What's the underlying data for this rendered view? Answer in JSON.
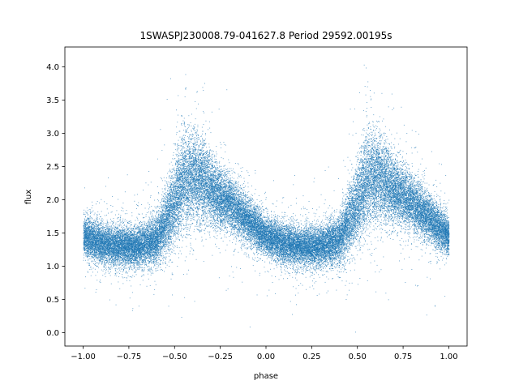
{
  "chart_data": {
    "type": "scatter",
    "title": "1SWASPJ230008.79-041627.8 Period 29592.00195s",
    "xlabel": "phase",
    "ylabel": "flux",
    "xlim": [
      -1.1,
      1.1
    ],
    "ylim": [
      -0.2,
      4.3
    ],
    "x_ticks": [
      -1.0,
      -0.75,
      -0.5,
      -0.25,
      0.0,
      0.25,
      0.5,
      0.75,
      1.0
    ],
    "x_tick_labels": [
      "−1.00",
      "−0.75",
      "−0.50",
      "−0.25",
      "0.00",
      "0.25",
      "0.50",
      "0.75",
      "1.00"
    ],
    "y_ticks": [
      0.0,
      0.5,
      1.0,
      1.5,
      2.0,
      2.5,
      3.0,
      3.5,
      4.0
    ],
    "y_tick_labels": [
      "0.0",
      "0.5",
      "1.0",
      "1.5",
      "2.0",
      "2.5",
      "3.0",
      "3.5",
      "4.0"
    ],
    "grid": false,
    "marker_color": "#1f77b4",
    "x_range": [
      -1.0,
      1.0
    ],
    "approx_point_count": 40000,
    "folded_curve": {
      "description": "phase-folded light curve repeated over two cycles",
      "phase": [
        -1.0,
        -0.9,
        -0.8,
        -0.7,
        -0.6,
        -0.5,
        -0.45,
        -0.4,
        -0.35,
        -0.3,
        -0.2,
        -0.1,
        0.0,
        0.1,
        0.2,
        0.3,
        0.4,
        0.5,
        0.55,
        0.6,
        0.65,
        0.7,
        0.8,
        0.9,
        1.0
      ],
      "median_flux": [
        1.45,
        1.35,
        1.3,
        1.3,
        1.4,
        1.95,
        2.3,
        2.35,
        2.3,
        2.15,
        1.95,
        1.7,
        1.45,
        1.35,
        1.3,
        1.3,
        1.4,
        1.95,
        2.3,
        2.35,
        2.3,
        2.15,
        1.95,
        1.7,
        1.45
      ],
      "spread_sigma": [
        0.15,
        0.15,
        0.15,
        0.15,
        0.18,
        0.3,
        0.35,
        0.35,
        0.3,
        0.25,
        0.2,
        0.17,
        0.15,
        0.15,
        0.15,
        0.15,
        0.18,
        0.3,
        0.35,
        0.35,
        0.3,
        0.25,
        0.2,
        0.17,
        0.15
      ]
    }
  }
}
